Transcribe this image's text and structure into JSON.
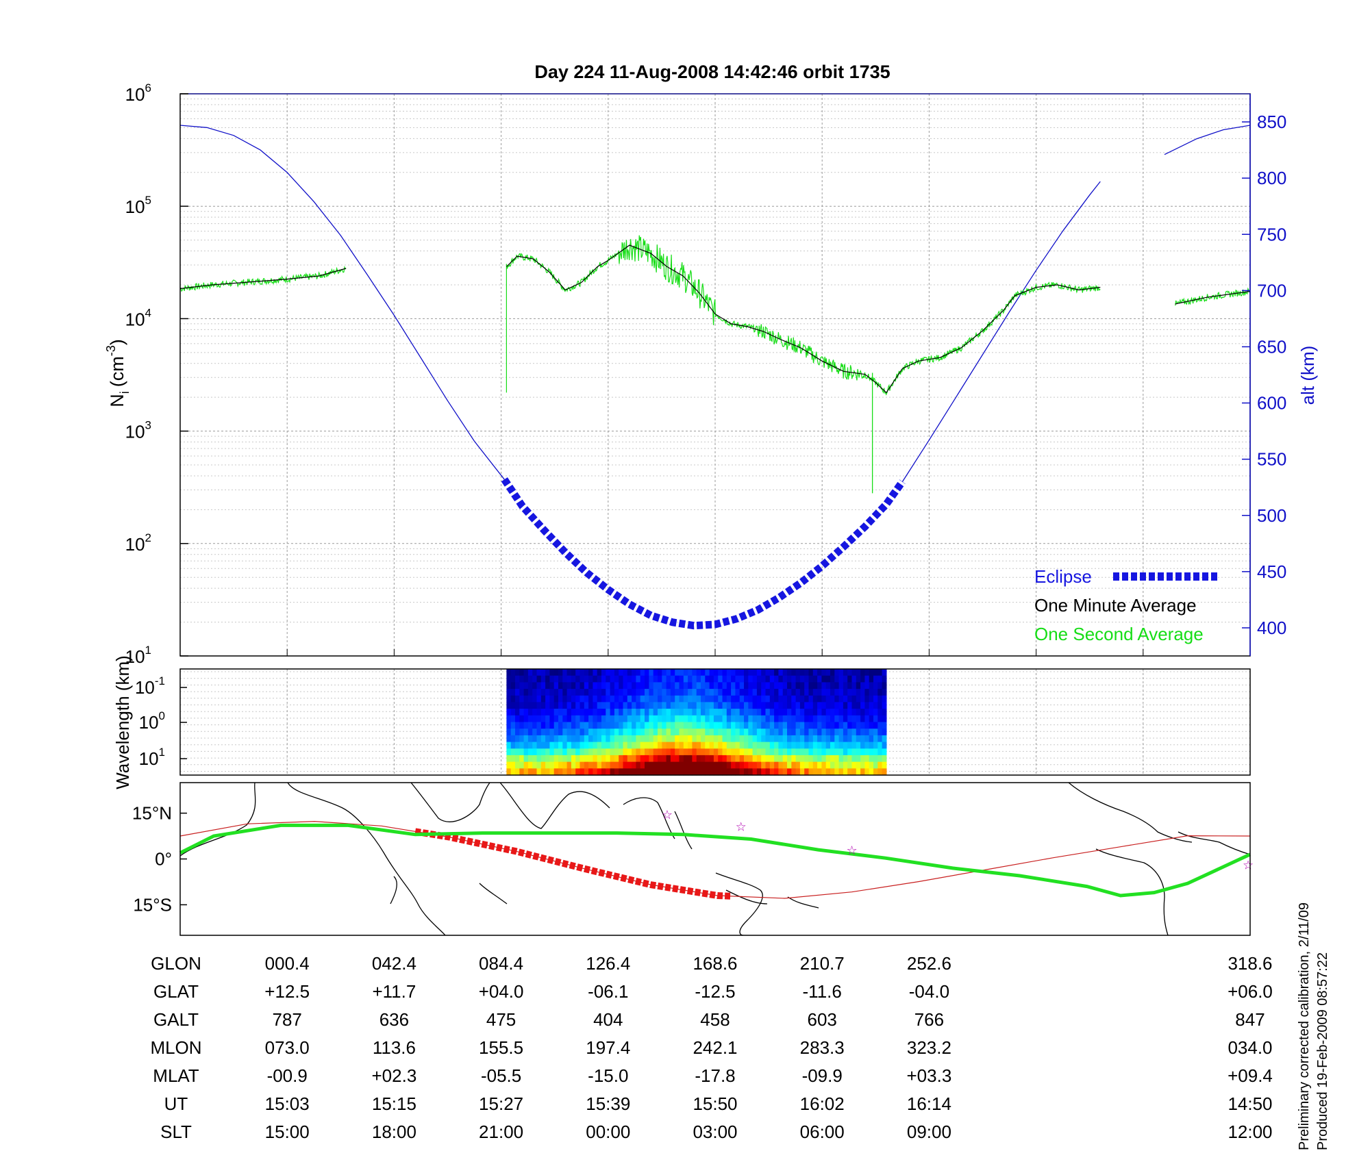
{
  "colors": {
    "altitude": "#1010c8",
    "minute_avg": "#000000",
    "second_avg": "#16dd16",
    "eclipse": "#1616e0",
    "orbit_track": "#c81e1e",
    "eclipse_track": "#e81818",
    "magnetic_equator": "#22e022",
    "stations": "#b000b0"
  },
  "chart_data": [
    {
      "type": "line",
      "name": "ion-density-panel",
      "title": "Day 224  11-Aug-2008 14:42:46   orbit 1735",
      "ylabel": "N",
      "ylabel_sub": "i",
      "ylabel_unit_pre": "(cm",
      "ylabel_unit_exp": "-3",
      "ylabel_unit_post": ")",
      "yscale": "log",
      "ylim": [
        10,
        1000000
      ],
      "yticks": [
        {
          "base": "10",
          "exp": "1",
          "value": 10
        },
        {
          "base": "10",
          "exp": "2",
          "value": 100
        },
        {
          "base": "10",
          "exp": "3",
          "value": 1000
        },
        {
          "base": "10",
          "exp": "4",
          "value": 10000
        },
        {
          "base": "10",
          "exp": "5",
          "value": 100000
        },
        {
          "base": "10",
          "exp": "6",
          "value": 1000000
        }
      ],
      "y2label": "alt (km)",
      "y2lim": [
        375,
        875
      ],
      "y2ticks": [
        400,
        450,
        500,
        550,
        600,
        650,
        700,
        750,
        800,
        850
      ],
      "xlim": [
        0,
        1
      ],
      "xticks": [
        0.1,
        0.2,
        0.3,
        0.4,
        0.5,
        0.6,
        0.7,
        0.8,
        0.9
      ],
      "series": [
        {
          "name": "Eclipse",
          "axis": "right",
          "x": [
            0.303,
            0.32,
            0.34,
            0.36,
            0.38,
            0.4,
            0.42,
            0.44,
            0.46,
            0.48,
            0.5,
            0.52,
            0.54,
            0.56,
            0.58,
            0.6,
            0.62,
            0.64,
            0.66,
            0.675
          ],
          "values": [
            532,
            508,
            487,
            467,
            449,
            434,
            421,
            411,
            405,
            402,
            403,
            408,
            416,
            427,
            440,
            455,
            472,
            490,
            510,
            530
          ]
        },
        {
          "name": "Altitude",
          "axis": "right",
          "x": [
            0.0,
            0.025,
            0.05,
            0.075,
            0.1,
            0.125,
            0.15,
            0.175,
            0.2,
            0.225,
            0.25,
            0.275,
            0.303,
            0.675,
            0.7,
            0.725,
            0.75,
            0.775,
            0.8,
            0.825,
            0.85,
            0.86
          ],
          "x2": [
            0.92,
            0.95,
            0.975,
            1.0
          ],
          "values": [
            847,
            845,
            838,
            825,
            805,
            779,
            749,
            714,
            678,
            640,
            602,
            566,
            532,
            530,
            567,
            605,
            643,
            681,
            718,
            753,
            785,
            797
          ],
          "values2": [
            821,
            835,
            843,
            847
          ]
        },
        {
          "name": "One Minute Average",
          "axis": "left",
          "segments": [
            {
              "x": [
                0.0,
                0.03,
                0.06,
                0.1,
                0.13,
                0.155
              ],
              "values": [
                18500,
                20000,
                21000,
                22500,
                24000,
                28000
              ]
            },
            {
              "x": [
                0.305,
                0.315,
                0.33,
                0.345,
                0.36,
                0.375,
                0.39,
                0.4,
                0.42,
                0.44,
                0.455,
                0.47,
                0.485,
                0.5,
                0.515,
                0.53,
                0.545,
                0.56,
                0.58,
                0.6,
                0.62,
                0.64,
                0.65,
                0.66,
                0.675,
                0.69,
                0.71,
                0.73,
                0.75,
                0.77,
                0.78,
                0.8,
                0.82,
                0.84,
                0.86
              ],
              "values": [
                29000,
                36000,
                34000,
                26000,
                18000,
                21000,
                29000,
                33000,
                45000,
                38000,
                29000,
                24000,
                17000,
                11000,
                9000,
                8500,
                7700,
                6600,
                5500,
                4200,
                3400,
                3200,
                2700,
                2200,
                3600,
                4200,
                4500,
                5500,
                7800,
                12000,
                16000,
                19000,
                20000,
                18000,
                19000
              ]
            },
            {
              "x": [
                0.93,
                0.96,
                1.0
              ],
              "values": [
                13500,
                15500,
                17500
              ]
            }
          ]
        },
        {
          "name": "One Second Average",
          "axis": "left",
          "note": "noisy 1 Hz samples overlaying the one-minute average"
        }
      ],
      "legend": [
        "Eclipse",
        "One Minute Average",
        "One Second Average"
      ],
      "legend_position": "bottom-right"
    },
    {
      "type": "heatmap",
      "name": "wavelength-spectrogram",
      "ylabel": "Wavelength (km)",
      "yscale": "log",
      "yticks": [
        {
          "base": "10",
          "exp": "-1"
        },
        {
          "base": "10",
          "exp": "0"
        },
        {
          "base": "10",
          "exp": "1"
        }
      ],
      "x_extent": [
        0.305,
        0.66
      ],
      "colormap": "jet",
      "peak_x": 0.47
    },
    {
      "type": "scatter",
      "name": "ground-track-map",
      "yticks": [
        "15°N",
        "0°",
        "15°S"
      ],
      "lat_range": [
        -25,
        25
      ],
      "series": [
        {
          "name": "orbit-track",
          "lon": [
            0,
            20,
            40,
            60,
            80,
            100,
            120,
            140,
            160,
            180,
            200,
            220,
            240,
            260,
            280,
            300,
            318.6
          ],
          "lat": [
            7.5,
            11.5,
            12.3,
            10.8,
            7.2,
            2.5,
            -3.1,
            -8.4,
            -12.0,
            -12.9,
            -10.8,
            -7.4,
            -3.5,
            0.4,
            4.0,
            7.6,
            7.5
          ]
        },
        {
          "name": "eclipse-track",
          "lon_range": [
            70,
            165
          ]
        },
        {
          "name": "magnetic-equator",
          "lon": [
            0,
            10,
            30,
            50,
            70,
            90,
            110,
            130,
            150,
            170,
            190,
            210,
            230,
            250,
            270,
            280,
            290,
            300,
            318.6
          ],
          "lat": [
            2,
            7.5,
            11,
            11,
            8,
            8.5,
            8.5,
            8.5,
            8,
            6.5,
            3,
            0.3,
            -3,
            -5.5,
            -9,
            -12,
            -11,
            -8,
            1.5
          ]
        },
        {
          "name": "stations",
          "lon": [
            145,
            167,
            200,
            318
          ],
          "lat": [
            14.5,
            10.5,
            2.8,
            -2
          ]
        }
      ]
    }
  ],
  "table": {
    "row_labels": [
      "GLON",
      "GLAT",
      "GALT",
      "MLON",
      "MLAT",
      "UT",
      "SLT"
    ],
    "columns": [
      [
        "000.4",
        "+12.5",
        "787",
        "073.0",
        "-00.9",
        "15:03",
        "15:00"
      ],
      [
        "042.4",
        "+11.7",
        "636",
        "113.6",
        "+02.3",
        "15:15",
        "18:00"
      ],
      [
        "084.4",
        "+04.0",
        "475",
        "155.5",
        "-05.5",
        "15:27",
        "21:00"
      ],
      [
        "126.4",
        "-06.1",
        "404",
        "197.4",
        "-15.0",
        "15:39",
        "00:00"
      ],
      [
        "168.6",
        "-12.5",
        "458",
        "242.1",
        "-17.8",
        "15:50",
        "03:00"
      ],
      [
        "210.7",
        "-11.6",
        "603",
        "283.3",
        "-09.9",
        "16:02",
        "06:00"
      ],
      [
        "252.6",
        "-04.0",
        "766",
        "323.2",
        "+03.3",
        "16:14",
        "09:00"
      ],
      [
        "318.6",
        "+06.0",
        "847",
        "034.0",
        "+09.4",
        "14:50",
        "12:00"
      ]
    ]
  },
  "notes": {
    "calibration": "Preliminary corrected calibration, 2/11/09",
    "produced": "Produced 19-Feb-2009 08:57:22"
  }
}
